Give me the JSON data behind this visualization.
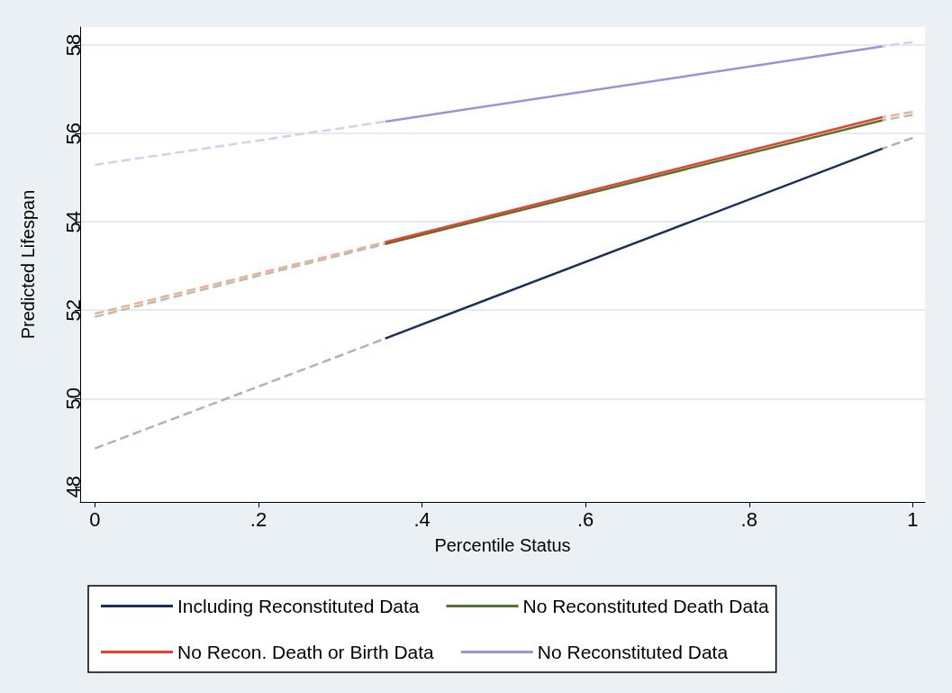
{
  "chart_data": {
    "type": "line",
    "xlabel": "Percentile Status",
    "ylabel": "Predicted Lifespan",
    "xlim": [
      -0.018,
      1.015
    ],
    "xticks": [
      0,
      {
        "value": 0.2,
        "label": ".2"
      },
      {
        "value": 0.4,
        "label": ".4"
      },
      {
        "value": 0.6,
        "label": ".6"
      },
      {
        "value": 0.8,
        "label": ".8"
      },
      1
    ],
    "ylim": [
      47.66,
      58.41
    ],
    "yticks": [
      48,
      50,
      52,
      54,
      56,
      58
    ],
    "grid": "y",
    "legend": "bottom",
    "marker": "none",
    "series": [
      {
        "name": "Including Reconstituted Data",
        "color": "#1b2f5b",
        "line_style": "solid",
        "x": [
          0.355,
          0.963
        ],
        "values": [
          51.36,
          55.66
        ]
      },
      {
        "name": "No Reconstituted Death Data",
        "color": "#56722f",
        "line_style": "solid",
        "x": [
          0.355,
          0.963
        ],
        "values": [
          53.5,
          56.3
        ]
      },
      {
        "name": "No Recon. Death or Birth Data",
        "color": "#e8402c",
        "line_style": "solid",
        "x": [
          0.355,
          0.963
        ],
        "values": [
          53.54,
          56.37
        ]
      },
      {
        "name": "No Reconstituted Data",
        "color": "#9d91d8",
        "line_style": "solid",
        "x": [
          0.355,
          0.963
        ],
        "values": [
          56.27,
          57.97
        ]
      },
      {
        "color": "#a9b3c4",
        "line_style": "dashed",
        "x": [
          0,
          0.355,
          0.66,
          1,
          0.963
        ],
        "values": [
          48.87,
          51.36,
          null,
          55.9,
          55.66
        ]
      },
      {
        "color": "#b3c3a0",
        "line_style": "dashed",
        "x": [
          0,
          0.355,
          0.66,
          1,
          0.963
        ],
        "values": [
          51.85,
          53.5,
          null,
          56.42,
          56.3
        ]
      },
      {
        "color": "#f1ac9c",
        "line_style": "dashed",
        "x": [
          0,
          0.355,
          0.66,
          1,
          0.963
        ],
        "values": [
          51.92,
          53.54,
          null,
          56.49,
          56.37
        ]
      },
      {
        "color": "#d5cfee",
        "line_style": "dashed",
        "x": [
          0,
          0.355,
          0.66,
          1,
          0.963
        ],
        "values": [
          55.29,
          56.27,
          null,
          58.07,
          57.97
        ]
      }
    ]
  }
}
